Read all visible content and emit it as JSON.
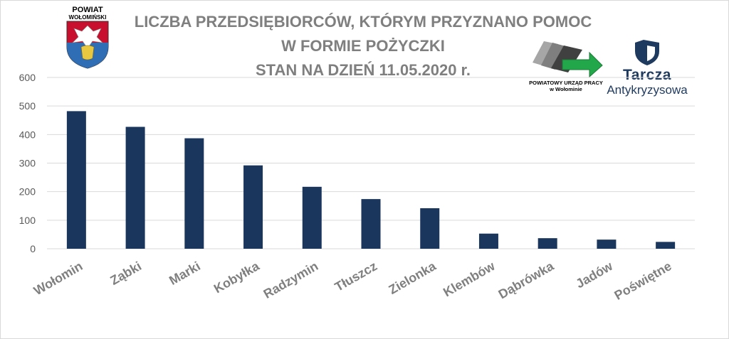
{
  "header": {
    "title_lines": [
      "LICZBA PRZEDSIĘBIORCÓW, KTÓRYM PRZYZNANO POMOC",
      "W FORMIE POŻYCZKI",
      "STAN NA DZIEŃ 11.05.2020 r."
    ]
  },
  "logos": {
    "powiat_line1": "POWIAT",
    "powiat_line2": "WOŁOMIŃSKI",
    "pup_line1": "POWIATOWY URZĄD PRACY",
    "pup_line2": "w Wołominie",
    "tarcza_line1": "Tarcza",
    "tarcza_line2": "Antykryzysowa"
  },
  "colors": {
    "bar": "#1b365d",
    "title": "#7f7f7f",
    "grid": "#d9d9d9",
    "arrow": "#22a84a"
  },
  "chart_data": {
    "type": "bar",
    "title": "LICZBA PRZEDSIĘBIORCÓW, KTÓRYM PRZYZNANO POMOC W FORMIE POŻYCZKI STAN NA DZIEŃ 11.05.2020 r.",
    "xlabel": "",
    "ylabel": "",
    "categories": [
      "Wołomin",
      "Ząbki",
      "Marki",
      "Kobyłka",
      "Radzymin",
      "Tłuszcz",
      "Zielonka",
      "Klembów",
      "Dąbrówka",
      "Jadów",
      "Poświętne"
    ],
    "values": [
      482,
      427,
      387,
      292,
      217,
      174,
      142,
      53,
      37,
      32,
      24
    ],
    "ylim": [
      0,
      600
    ],
    "yticks": [
      0,
      100,
      200,
      300,
      400,
      500,
      600
    ],
    "grid": true,
    "legend": "none"
  }
}
